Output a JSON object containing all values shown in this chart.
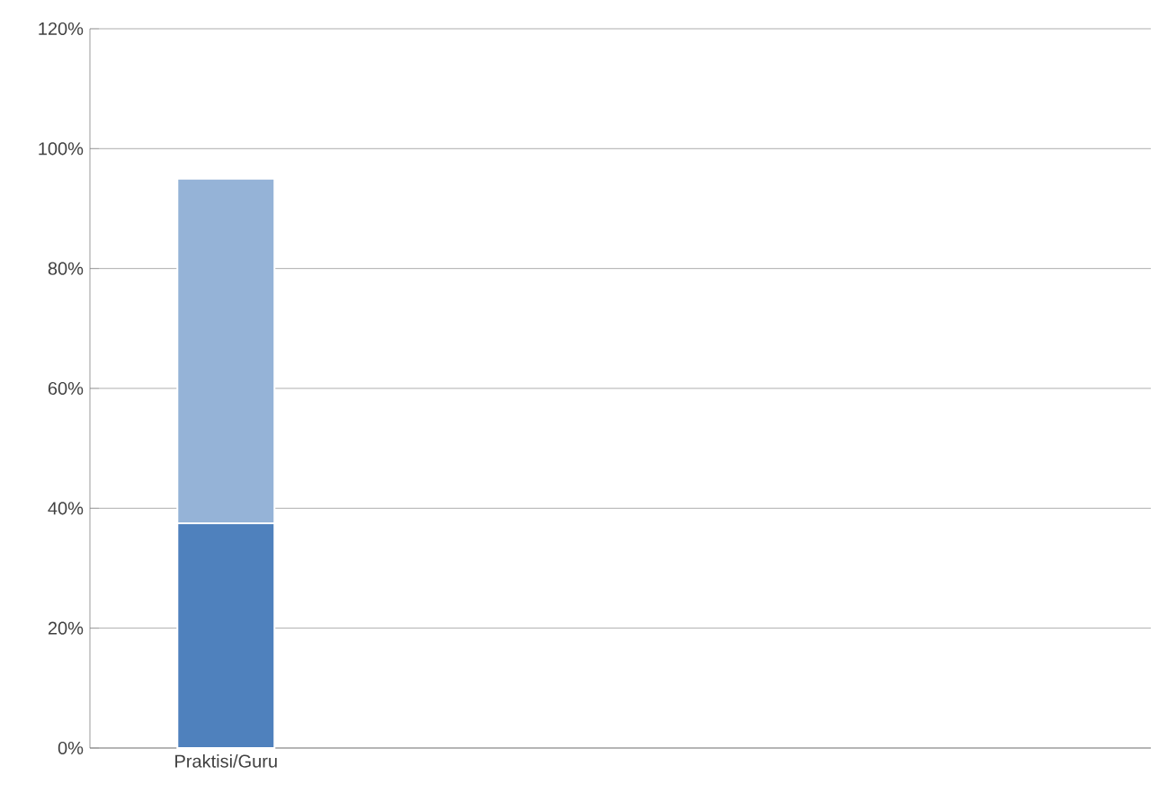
{
  "chart_data": {
    "type": "bar",
    "stacked": true,
    "categories": [
      "Praktisi/Guru",
      null,
      null,
      null
    ],
    "series": [
      {
        "color": "#4f81bd",
        "values": [
          37.5,
          null,
          null,
          null
        ]
      },
      {
        "color": "#95b3d7",
        "values": [
          57.5,
          null,
          null,
          null
        ]
      }
    ],
    "ylim": [
      0,
      120
    ],
    "yticks": [
      {
        "value": 0,
        "label": "0%"
      },
      {
        "value": 20,
        "label": "20%"
      },
      {
        "value": 40,
        "label": "40%"
      },
      {
        "value": 60,
        "label": "60%"
      },
      {
        "value": 80,
        "label": "80%"
      },
      {
        "value": 100,
        "label": "100%"
      },
      {
        "value": 120,
        "label": "120%"
      }
    ],
    "grid": "y"
  }
}
